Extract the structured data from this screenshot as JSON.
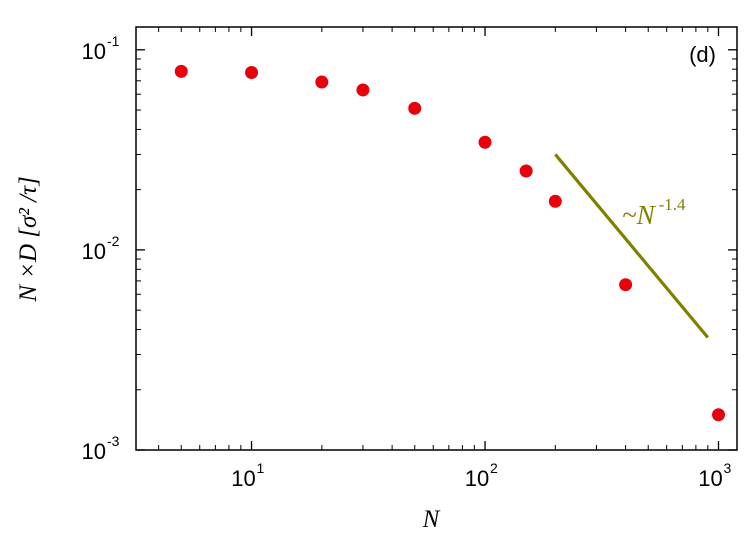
{
  "chart_data": {
    "type": "scatter",
    "panel_label": "(d)",
    "xlabel": "N",
    "ylabel": "N ×D [σ² /τ]",
    "x_scale": "log",
    "y_scale": "log",
    "xlim": [
      3.2,
      1200
    ],
    "ylim": [
      0.001,
      0.13
    ],
    "grid": false,
    "x_ticks": [
      {
        "value": 10,
        "base": "10",
        "exp": "1"
      },
      {
        "value": 100,
        "base": "10",
        "exp": "2"
      },
      {
        "value": 1000,
        "base": "10",
        "exp": "3"
      }
    ],
    "y_ticks": [
      {
        "value": 0.001,
        "base": "10",
        "exp": "-3"
      },
      {
        "value": 0.01,
        "base": "10",
        "exp": "-2"
      },
      {
        "value": 0.1,
        "base": "10",
        "exp": "-1"
      }
    ],
    "series": [
      {
        "color": "#e8000b",
        "points": [
          {
            "x": 5,
            "y": 0.078
          },
          {
            "x": 10,
            "y": 0.077
          },
          {
            "x": 20,
            "y": 0.069
          },
          {
            "x": 30,
            "y": 0.063
          },
          {
            "x": 50,
            "y": 0.051
          },
          {
            "x": 100,
            "y": 0.0345
          },
          {
            "x": 150,
            "y": 0.0248
          },
          {
            "x": 200,
            "y": 0.0175
          },
          {
            "x": 400,
            "y": 0.0067
          },
          {
            "x": 1000,
            "y": 0.0015
          }
        ]
      }
    ],
    "reference_line": {
      "label_prefix": "~N",
      "label_exp": "-1.4",
      "color": "#808000",
      "x": [
        200,
        900
      ],
      "y": [
        0.03,
        0.00365
      ]
    }
  }
}
